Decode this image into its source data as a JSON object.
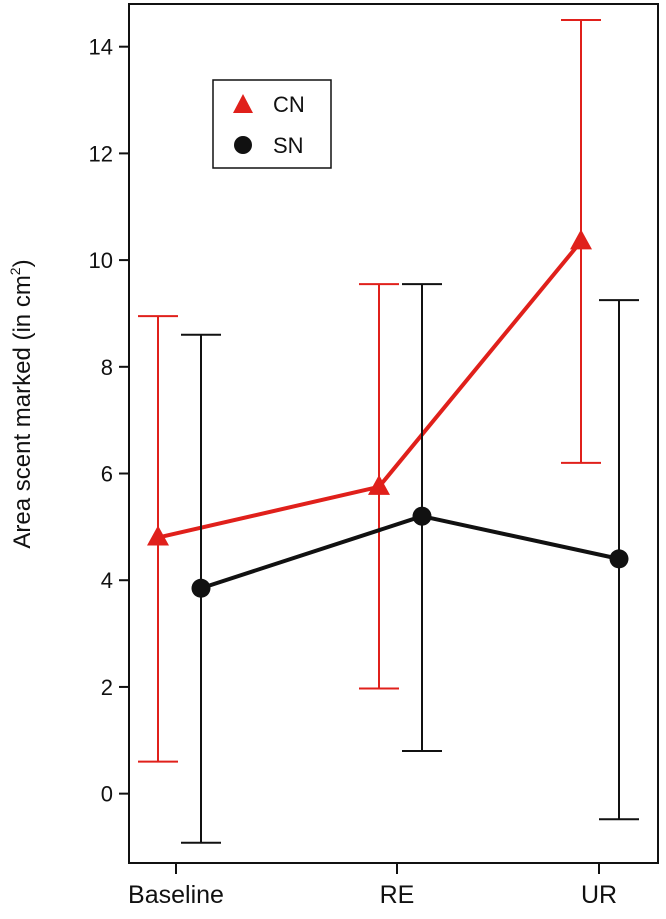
{
  "chart_data": {
    "type": "line",
    "categories": [
      "Baseline",
      "RE",
      "UR"
    ],
    "ylabel": "Area scent marked (in cm",
    "ylabel_sup": "2",
    "ylabel_close": ")",
    "ylim": [
      -1.3,
      14.8
    ],
    "yticks": [
      0,
      2,
      4,
      6,
      8,
      10,
      12,
      14
    ],
    "grid": false,
    "legend_position": "top-left",
    "series": [
      {
        "name": "CN",
        "marker": "triangle",
        "color": "#e0201b",
        "values": [
          4.8,
          5.75,
          10.35
        ],
        "error_low": [
          0.6,
          1.97,
          6.2
        ],
        "error_high": [
          8.95,
          9.55,
          14.5
        ]
      },
      {
        "name": "SN",
        "marker": "circle",
        "color": "#111111",
        "values": [
          3.85,
          5.2,
          4.4
        ],
        "error_low": [
          -0.92,
          0.8,
          -0.48
        ],
        "error_high": [
          8.6,
          9.55,
          9.25
        ]
      }
    ]
  }
}
